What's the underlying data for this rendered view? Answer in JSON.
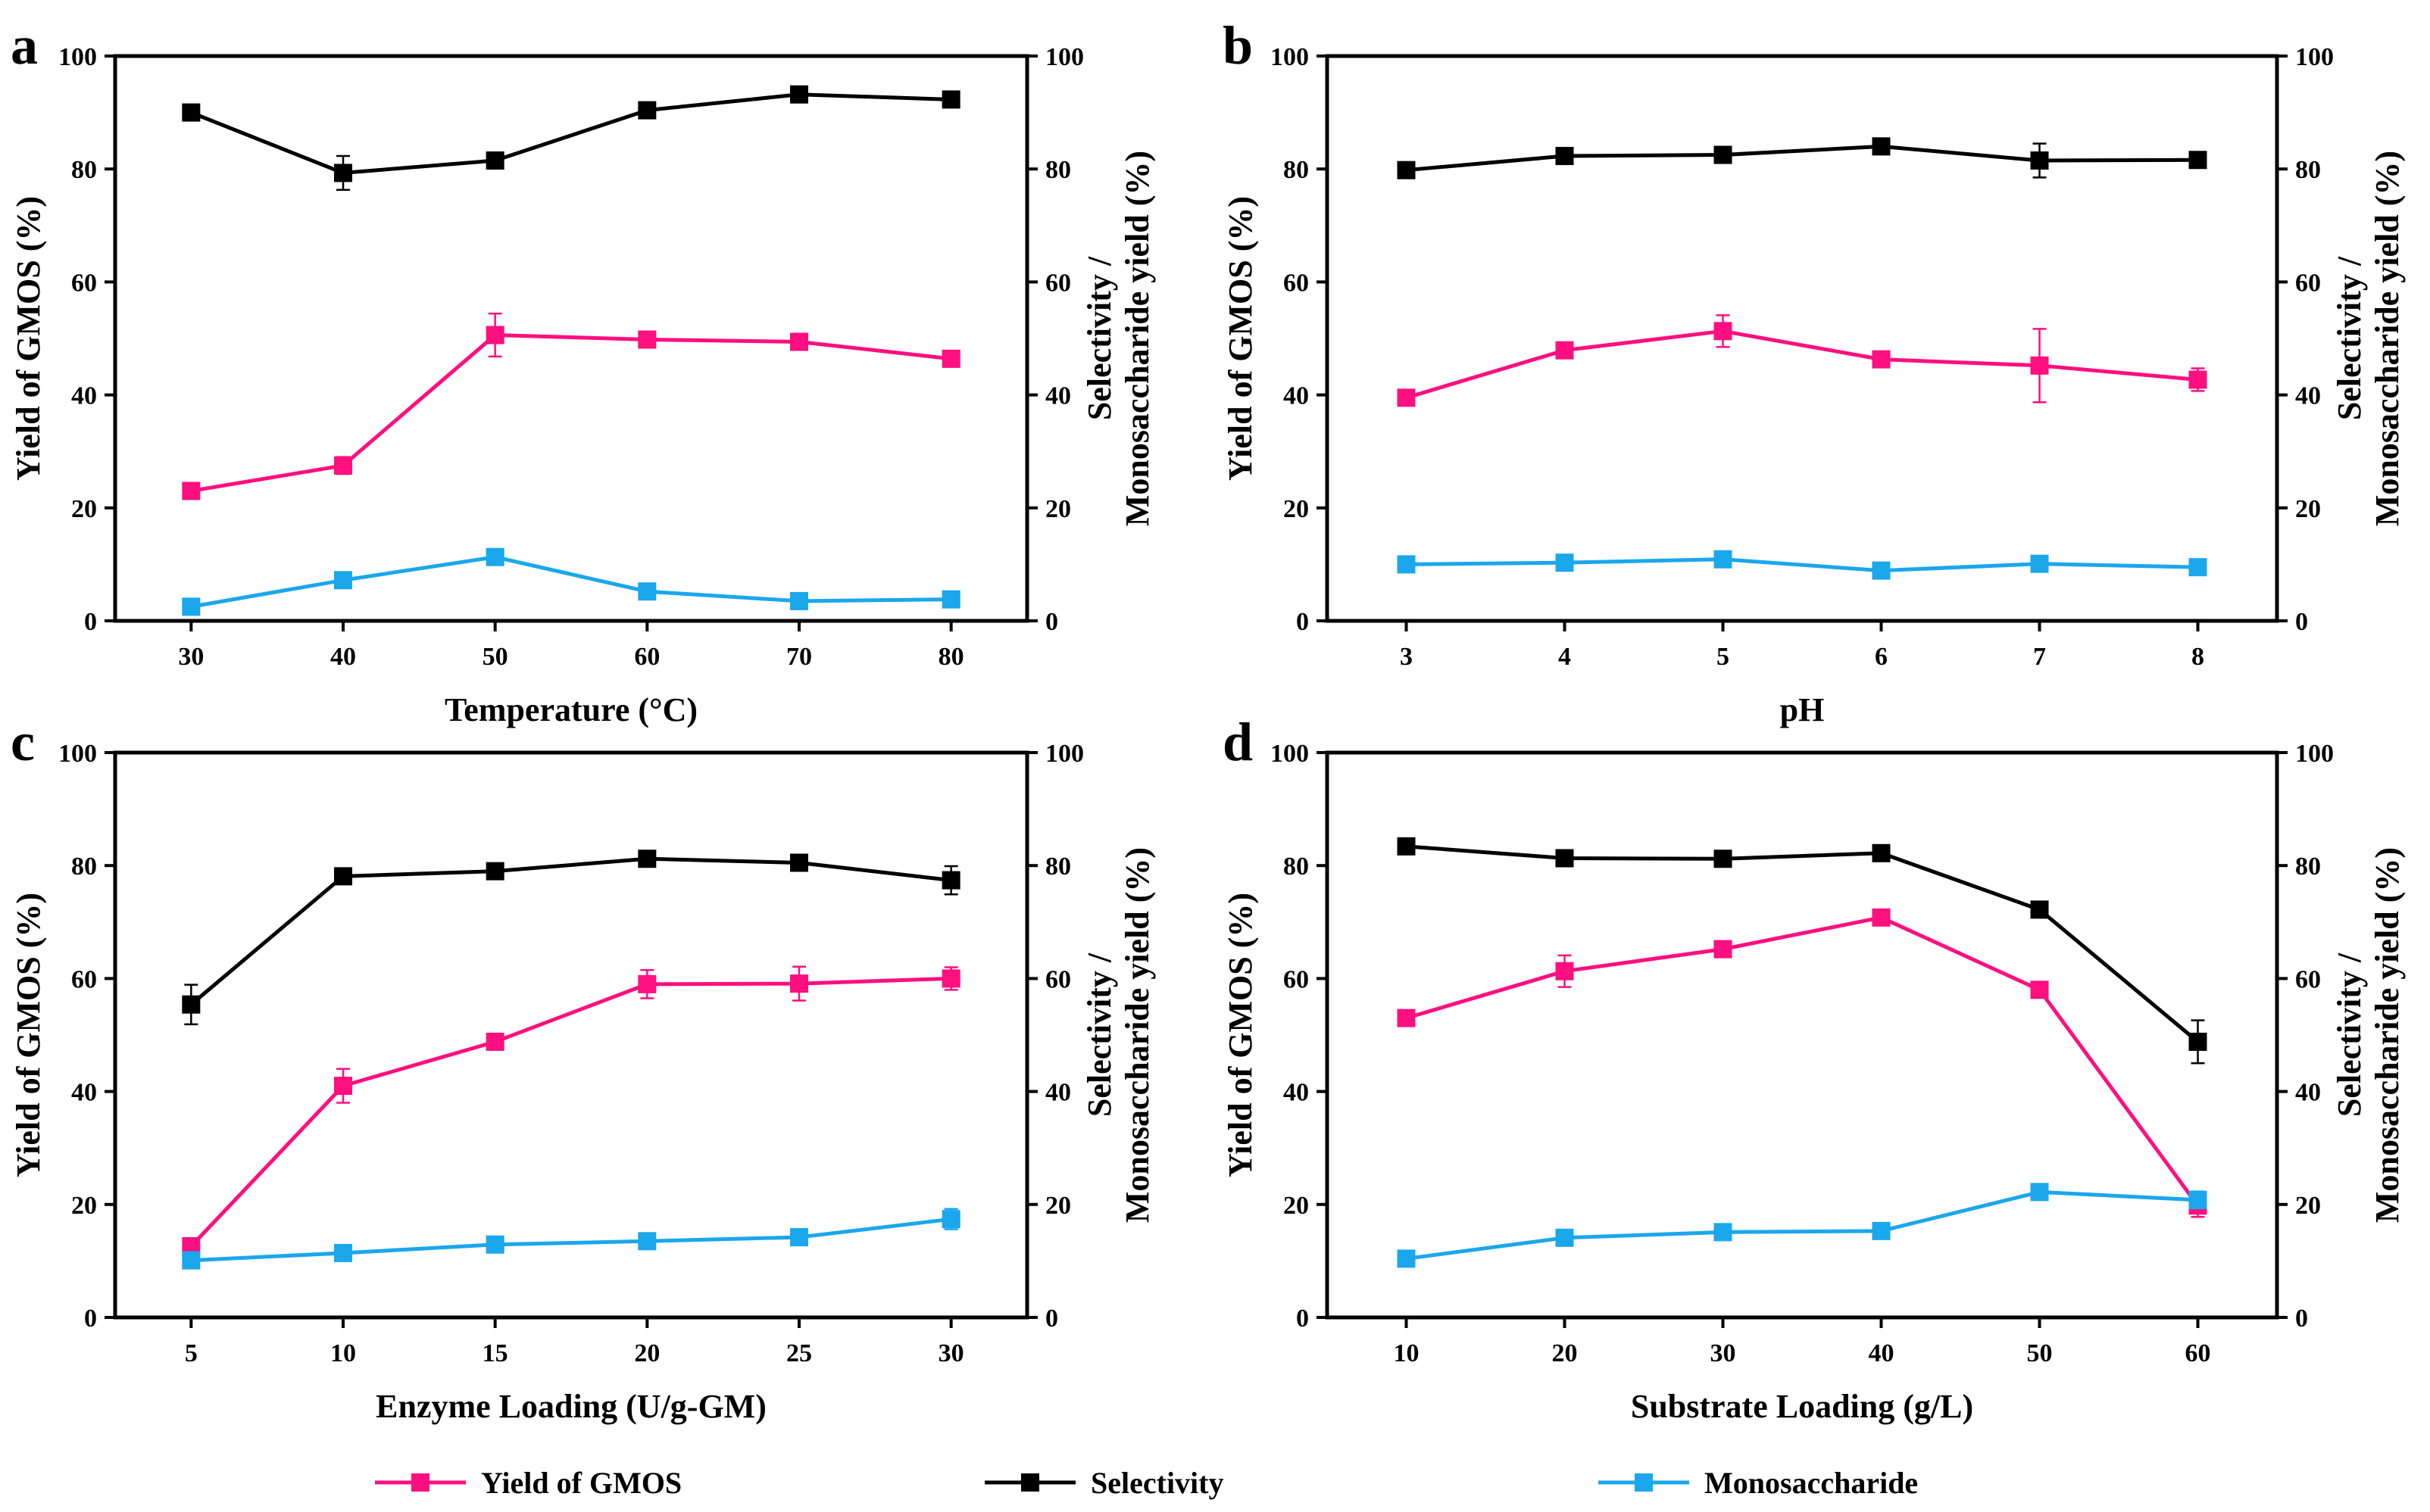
{
  "figure": {
    "legend": [
      {
        "label": "Yield of GMOS",
        "color": "#ff0f80"
      },
      {
        "label": "Selectivity",
        "color": "#000000"
      },
      {
        "label": "Monosaccharide",
        "color": "#1aa7ec"
      }
    ]
  },
  "chart_data": [
    {
      "panel": "a",
      "type": "line",
      "xlabel": "Temperature (°C)",
      "ylabel_left": "Yield of GMOS (%)",
      "ylabel_right_line1": "Selectivity /",
      "ylabel_right_line2": "Monosaccharide yield (%)",
      "x": [
        30,
        40,
        50,
        60,
        70,
        80
      ],
      "xlim": [
        25,
        85
      ],
      "ylim": [
        0,
        100
      ],
      "yticks": [
        0,
        20,
        40,
        60,
        80,
        100
      ],
      "series": [
        {
          "name": "Yield of GMOS",
          "color": "#ff0f80",
          "values": [
            23.0,
            27.5,
            50.6,
            49.8,
            49.4,
            46.4
          ],
          "errors": [
            0.8,
            1.5,
            3.8,
            0.6,
            0.6,
            0.6
          ]
        },
        {
          "name": "Selectivity",
          "color": "#000000",
          "values": [
            90.0,
            79.3,
            81.5,
            90.4,
            93.2,
            92.3
          ],
          "errors": [
            0.6,
            3.0,
            0.8,
            0.8,
            0.6,
            0.6
          ]
        },
        {
          "name": "Monosaccharide",
          "color": "#1aa7ec",
          "values": [
            2.5,
            7.2,
            11.3,
            5.2,
            3.5,
            3.8
          ],
          "errors": [
            0.4,
            0.6,
            0.8,
            0.6,
            0.4,
            0.4
          ]
        }
      ]
    },
    {
      "panel": "b",
      "type": "line",
      "xlabel": "pH",
      "ylabel_left": "Yield of GMOS (%)",
      "ylabel_right_line1": "Selectivity /",
      "ylabel_right_line2": "Monosaccharide yield (%)",
      "x": [
        3,
        4,
        5,
        6,
        7,
        8
      ],
      "xlim": [
        2.5,
        8.5
      ],
      "ylim": [
        0,
        100
      ],
      "yticks": [
        0,
        20,
        40,
        60,
        80,
        100
      ],
      "series": [
        {
          "name": "Yield of GMOS",
          "color": "#ff0f80",
          "values": [
            39.5,
            47.9,
            51.3,
            46.3,
            45.2,
            42.7
          ],
          "errors": [
            0.6,
            0.8,
            2.8,
            0.8,
            6.5,
            2.0
          ]
        },
        {
          "name": "Selectivity",
          "color": "#000000",
          "values": [
            79.8,
            82.3,
            82.5,
            84.0,
            81.5,
            81.6
          ],
          "errors": [
            0.6,
            0.6,
            0.6,
            0.6,
            3.0,
            0.6
          ]
        },
        {
          "name": "Monosaccharide",
          "color": "#1aa7ec",
          "values": [
            10.0,
            10.3,
            10.9,
            8.9,
            10.1,
            9.5
          ],
          "errors": [
            0.4,
            0.4,
            0.4,
            0.4,
            0.4,
            0.4
          ]
        }
      ]
    },
    {
      "panel": "c",
      "type": "line",
      "xlabel": "Enzyme Loading (U/g-GM)",
      "ylabel_left": "Yield of GMOS (%)",
      "ylabel_right_line1": "Selectivity /",
      "ylabel_right_line2": "Monosaccharide yield (%)",
      "x": [
        5,
        10,
        15,
        20,
        25,
        30
      ],
      "xlim": [
        2.5,
        32.5
      ],
      "ylim": [
        0,
        100
      ],
      "yticks": [
        0,
        20,
        40,
        60,
        80,
        100
      ],
      "series": [
        {
          "name": "Yield of GMOS",
          "color": "#ff0f80",
          "values": [
            12.6,
            41.0,
            48.8,
            59.0,
            59.1,
            60.0
          ],
          "errors": [
            0.6,
            3.0,
            0.8,
            2.5,
            3.0,
            2.0
          ]
        },
        {
          "name": "Selectivity",
          "color": "#000000",
          "values": [
            55.4,
            78.1,
            79.0,
            81.2,
            80.5,
            77.4
          ],
          "errors": [
            3.5,
            0.8,
            1.0,
            0.8,
            0.8,
            2.5
          ]
        },
        {
          "name": "Monosaccharide",
          "color": "#1aa7ec",
          "values": [
            10.1,
            11.4,
            12.9,
            13.5,
            14.2,
            17.4
          ],
          "errors": [
            0.4,
            0.4,
            0.4,
            0.4,
            0.6,
            1.8
          ]
        }
      ]
    },
    {
      "panel": "d",
      "type": "line",
      "xlabel": "Substrate Loading (g/L)",
      "ylabel_left": "Yield of GMOS (%)",
      "ylabel_right_line1": "Selectivity /",
      "ylabel_right_line2": "Monosaccharide yield (%)",
      "x": [
        10,
        20,
        30,
        40,
        50,
        60
      ],
      "xlim": [
        5,
        65
      ],
      "ylim": [
        0,
        100
      ],
      "yticks": [
        0,
        20,
        40,
        60,
        80,
        100
      ],
      "series": [
        {
          "name": "Yield of GMOS",
          "color": "#ff0f80",
          "values": [
            53.0,
            61.3,
            65.2,
            70.8,
            58.0,
            19.8
          ],
          "errors": [
            0.6,
            2.8,
            0.8,
            0.8,
            0.8,
            2.0
          ]
        },
        {
          "name": "Selectivity",
          "color": "#000000",
          "values": [
            83.4,
            81.3,
            81.2,
            82.2,
            72.2,
            48.8
          ],
          "errors": [
            0.6,
            0.6,
            0.6,
            0.6,
            0.8,
            3.8
          ]
        },
        {
          "name": "Monosaccharide",
          "color": "#1aa7ec",
          "values": [
            10.4,
            14.1,
            15.1,
            15.3,
            22.2,
            20.8
          ],
          "errors": [
            0.4,
            0.6,
            0.6,
            0.6,
            0.8,
            1.5
          ]
        }
      ]
    }
  ]
}
